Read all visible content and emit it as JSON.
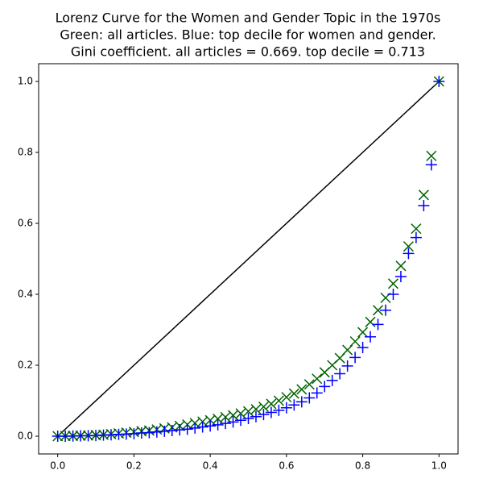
{
  "chart_data": {
    "type": "scatter",
    "title": [
      "Lorenz Curve for the Women and Gender Topic in the 1970s",
      "Green: all articles. Blue: top decile for women and gender.",
      "Gini coefficient.  all articles = 0.669. top decile = 0.713"
    ],
    "xlim": [
      -0.05,
      1.05
    ],
    "ylim": [
      -0.05,
      1.05
    ],
    "xticks": [
      {
        "value": 0,
        "label": "0.0"
      },
      {
        "value": 0.2,
        "label": "0.2"
      },
      {
        "value": 0.4,
        "label": "0.4"
      },
      {
        "value": 0.6,
        "label": "0.6"
      },
      {
        "value": 0.8,
        "label": "0.8"
      },
      {
        "value": 1,
        "label": "1.0"
      }
    ],
    "yticks": [
      {
        "value": 0,
        "label": "0.0"
      },
      {
        "value": 0.2,
        "label": "0.2"
      },
      {
        "value": 0.4,
        "label": "0.4"
      },
      {
        "value": 0.6,
        "label": "0.6"
      },
      {
        "value": 0.8,
        "label": "0.8"
      },
      {
        "value": 1,
        "label": "1.0"
      }
    ],
    "series": [
      {
        "kind": "line",
        "color": "#000000",
        "x": [
          0,
          1
        ],
        "y": [
          0,
          1
        ]
      },
      {
        "kind": "x",
        "color": "#006400",
        "x": [
          0,
          0.02,
          0.04,
          0.06,
          0.08,
          0.1,
          0.12,
          0.14,
          0.16,
          0.18,
          0.2,
          0.22,
          0.24,
          0.26,
          0.28,
          0.3,
          0.32,
          0.34,
          0.36,
          0.38,
          0.4,
          0.42,
          0.44,
          0.46,
          0.48,
          0.5,
          0.52,
          0.54,
          0.56,
          0.58,
          0.6,
          0.62,
          0.64,
          0.66,
          0.68,
          0.7,
          0.72,
          0.74,
          0.76,
          0.78,
          0.8,
          0.82,
          0.84,
          0.86,
          0.88,
          0.9,
          0.92,
          0.94,
          0.96,
          0.98,
          1
        ],
        "y": [
          0,
          0.0005,
          0.001,
          0.0015,
          0.002,
          0.003,
          0.004,
          0.006,
          0.008,
          0.01,
          0.012,
          0.014,
          0.016,
          0.019,
          0.022,
          0.025,
          0.029,
          0.033,
          0.037,
          0.041,
          0.045,
          0.049,
          0.054,
          0.059,
          0.064,
          0.07,
          0.076,
          0.083,
          0.091,
          0.1,
          0.11,
          0.12,
          0.132,
          0.146,
          0.162,
          0.18,
          0.2,
          0.22,
          0.243,
          0.267,
          0.293,
          0.322,
          0.355,
          0.39,
          0.43,
          0.48,
          0.535,
          0.585,
          0.68,
          0.79,
          1
        ]
      },
      {
        "kind": "plus",
        "color": "#0000ff",
        "x": [
          0,
          0.02,
          0.04,
          0.06,
          0.08,
          0.1,
          0.12,
          0.14,
          0.16,
          0.18,
          0.2,
          0.22,
          0.24,
          0.26,
          0.28,
          0.3,
          0.32,
          0.34,
          0.36,
          0.38,
          0.4,
          0.42,
          0.44,
          0.46,
          0.48,
          0.5,
          0.52,
          0.54,
          0.56,
          0.58,
          0.6,
          0.62,
          0.64,
          0.66,
          0.68,
          0.7,
          0.72,
          0.74,
          0.76,
          0.78,
          0.8,
          0.82,
          0.84,
          0.86,
          0.88,
          0.9,
          0.92,
          0.94,
          0.96,
          0.98,
          1
        ],
        "y": [
          0,
          0,
          0.0005,
          0.001,
          0.0015,
          0.002,
          0.003,
          0.004,
          0.005,
          0.006,
          0.007,
          0.009,
          0.01,
          0.012,
          0.014,
          0.016,
          0.018,
          0.02,
          0.023,
          0.026,
          0.029,
          0.032,
          0.036,
          0.04,
          0.045,
          0.05,
          0.055,
          0.061,
          0.067,
          0.073,
          0.08,
          0.088,
          0.097,
          0.108,
          0.122,
          0.14,
          0.157,
          0.176,
          0.198,
          0.222,
          0.25,
          0.28,
          0.315,
          0.355,
          0.4,
          0.45,
          0.515,
          0.56,
          0.65,
          0.765,
          1
        ]
      }
    ]
  }
}
